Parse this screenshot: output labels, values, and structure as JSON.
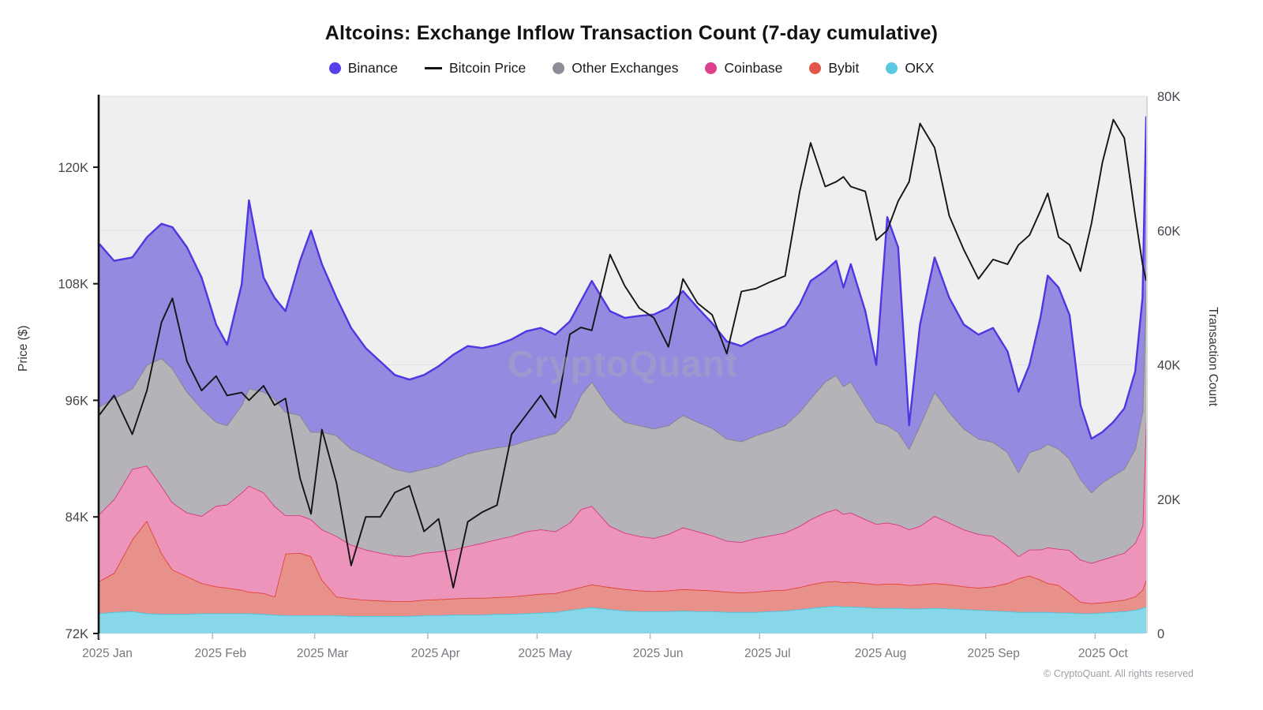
{
  "header": {
    "title": "Altcoins: Exchange Inflow Transaction Count (7-day cumulative)",
    "watermark": "CryptoQuant",
    "copyright": "© CryptoQuant. All rights reserved"
  },
  "legend": [
    {
      "id": "binance",
      "label": "Binance",
      "marker": "dot",
      "color": "#5640ea"
    },
    {
      "id": "bitcoin-price",
      "label": "Bitcoin Price",
      "marker": "line",
      "color": "#141414"
    },
    {
      "id": "other-exchanges",
      "label": "Other Exchanges",
      "marker": "dot",
      "color": "#8e8c96"
    },
    {
      "id": "coinbase",
      "label": "Coinbase",
      "marker": "dot",
      "color": "#dd3f8d"
    },
    {
      "id": "bybit",
      "label": "Bybit",
      "marker": "dot",
      "color": "#e25549"
    },
    {
      "id": "okx",
      "label": "OKX",
      "marker": "dot",
      "color": "#5bc8e3"
    }
  ],
  "colors": {
    "plot_bg": "#f0eff0",
    "grid": "#e4e4e7",
    "axis_spine": "#111111",
    "right_spine": "#d8d8db",
    "tick_text": "#42464b",
    "month_text": "#75797e",
    "month_tick": "#b9b9bd",
    "btc_line": "#141414"
  },
  "chart_data": {
    "type": "area",
    "subtype": "stacked-area-with-line",
    "title": "Altcoins: Exchange Inflow Transaction Count (7-day cumulative)",
    "y_left": {
      "label": "Price ($)",
      "ticks": [
        "120K",
        "108K",
        "96K",
        "84K",
        "72K"
      ],
      "tick_values": [
        120,
        108,
        96,
        84,
        72
      ],
      "min": 72,
      "max": 127.3,
      "unit": "K USD"
    },
    "y_right": {
      "label": "Transaction Count",
      "ticks": [
        "80K",
        "60K",
        "40K",
        "20K",
        "0"
      ],
      "tick_values": [
        80,
        60,
        40,
        20,
        0
      ],
      "min": 0,
      "max": 80,
      "unit": "K transactions"
    },
    "x_axis": {
      "months": [
        "2025 Jan",
        "2025 Feb",
        "2025 Mar",
        "2025 Apr",
        "2025 May",
        "2025 Jun",
        "2025 Jul",
        "2025 Aug",
        "2025 Sep",
        "2025 Oct"
      ],
      "month_start_days": [
        0,
        31,
        59,
        90,
        120,
        151,
        181,
        212,
        243,
        273
      ],
      "total_days": 287,
      "grid": "horizontal-faint",
      "legend_position": "top"
    },
    "stack_order_bottom_to_top": [
      "okx",
      "bybit",
      "coinbase",
      "other_exchanges",
      "binance"
    ],
    "series_style": {
      "okx": {
        "fill": "#87d7e9",
        "stroke": "#4cc3de"
      },
      "bybit": {
        "fill": "#e7918a",
        "stroke": "#df4338"
      },
      "coinbase": {
        "fill": "#ed94bb",
        "stroke": "#d63880"
      },
      "other_exchanges": {
        "fill": "#b5b3b8",
        "stroke": "#84828c"
      },
      "binance": {
        "fill": "#948adf",
        "stroke": "#4d37e2"
      }
    },
    "columns": [
      "day",
      "okx_k",
      "bybit_k",
      "coinbase_k",
      "other_exchanges_k",
      "binance_k",
      "btc_price_kusd"
    ],
    "points": [
      [
        0,
        3.0,
        4.8,
        10.0,
        16.0,
        24.2,
        94.5
      ],
      [
        4,
        3.2,
        5.8,
        11.0,
        15.0,
        20.5,
        96.5
      ],
      [
        9,
        3.3,
        10.7,
        10.5,
        12.0,
        19.5,
        92.5
      ],
      [
        13,
        3.0,
        13.8,
        8.2,
        15.0,
        19.0,
        97.0
      ],
      [
        17,
        2.9,
        9.1,
        10.0,
        19.0,
        20.0,
        104.0
      ],
      [
        20,
        2.9,
        6.6,
        10.0,
        20.0,
        21.0,
        106.5
      ],
      [
        24,
        2.9,
        5.6,
        9.5,
        18.0,
        21.5,
        100.0
      ],
      [
        28,
        3.0,
        4.5,
        10.0,
        16.0,
        19.5,
        97.0
      ],
      [
        32,
        3.0,
        4.0,
        12.0,
        12.5,
        14.5,
        98.5
      ],
      [
        35,
        3.0,
        3.8,
        12.4,
        11.8,
        12.0,
        96.5
      ],
      [
        39,
        3.0,
        3.5,
        14.5,
        13.0,
        18.0,
        96.8
      ],
      [
        41,
        3.0,
        3.2,
        15.8,
        14.5,
        28.0,
        96.0
      ],
      [
        45,
        2.9,
        3.1,
        15.0,
        15.0,
        17.0,
        97.5
      ],
      [
        48,
        2.8,
        2.7,
        13.5,
        16.0,
        15.0,
        95.5
      ],
      [
        51,
        2.7,
        9.2,
        5.7,
        15.4,
        15.0,
        96.2
      ],
      [
        55,
        2.7,
        9.3,
        5.6,
        14.9,
        23.0,
        88.0
      ],
      [
        58,
        2.7,
        8.8,
        5.5,
        13.0,
        30.0,
        84.3
      ],
      [
        61,
        2.7,
        5.3,
        7.5,
        14.5,
        25.0,
        93.0
      ],
      [
        65,
        2.7,
        2.8,
        9.0,
        15.0,
        20.5,
        87.5
      ],
      [
        69,
        2.6,
        2.6,
        8.0,
        14.3,
        18.0,
        79.0
      ],
      [
        73,
        2.6,
        2.4,
        7.5,
        14.0,
        16.0,
        84.0
      ],
      [
        77,
        2.6,
        2.3,
        7.1,
        13.5,
        15.0,
        84.0
      ],
      [
        81,
        2.6,
        2.2,
        6.8,
        12.9,
        14.0,
        86.5
      ],
      [
        85,
        2.6,
        2.2,
        6.7,
        12.5,
        13.8,
        87.2
      ],
      [
        89,
        2.7,
        2.3,
        7.0,
        12.5,
        14.0,
        82.5
      ],
      [
        93,
        2.7,
        2.4,
        7.1,
        12.8,
        14.8,
        83.8
      ],
      [
        97,
        2.8,
        2.4,
        7.3,
        13.5,
        15.5,
        76.7
      ],
      [
        101,
        2.8,
        2.5,
        7.7,
        13.8,
        16.0,
        83.5
      ],
      [
        105,
        2.8,
        2.5,
        8.2,
        13.8,
        15.2,
        84.5
      ],
      [
        109,
        2.9,
        2.5,
        8.6,
        13.7,
        15.3,
        85.2
      ],
      [
        113,
        2.9,
        2.6,
        9.0,
        13.5,
        15.8,
        92.5
      ],
      [
        117,
        3.0,
        2.7,
        9.5,
        13.5,
        16.3,
        94.5
      ],
      [
        121,
        3.1,
        2.8,
        9.6,
        13.8,
        16.2,
        96.5
      ],
      [
        125,
        3.2,
        2.8,
        9.2,
        14.6,
        14.7,
        94.2
      ],
      [
        129,
        3.5,
        3.0,
        10.0,
        15.5,
        14.5,
        102.8
      ],
      [
        132,
        3.7,
        3.2,
        11.6,
        17.0,
        14.0,
        103.5
      ],
      [
        135,
        3.9,
        3.4,
        11.7,
        18.5,
        15.0,
        103.2
      ],
      [
        140,
        3.6,
        3.3,
        9.1,
        17.5,
        14.5,
        111.0
      ],
      [
        144,
        3.4,
        3.2,
        8.4,
        16.5,
        15.5,
        107.8
      ],
      [
        148,
        3.3,
        3.1,
        8.1,
        16.5,
        16.3,
        105.5
      ],
      [
        152,
        3.3,
        3.0,
        7.9,
        16.3,
        17.0,
        104.5
      ],
      [
        156,
        3.3,
        3.1,
        8.4,
        16.2,
        17.5,
        101.5
      ],
      [
        160,
        3.4,
        3.2,
        9.2,
        16.7,
        18.5,
        108.5
      ],
      [
        164,
        3.3,
        3.2,
        8.7,
        16.3,
        17.0,
        106.0
      ],
      [
        168,
        3.3,
        3.1,
        8.2,
        16.0,
        15.6,
        104.8
      ],
      [
        172,
        3.2,
        3.0,
        7.6,
        15.2,
        14.5,
        100.8
      ],
      [
        176,
        3.2,
        2.9,
        7.5,
        15.0,
        14.2,
        107.2
      ],
      [
        180,
        3.2,
        3.0,
        8.0,
        15.3,
        14.5,
        107.5
      ],
      [
        184,
        3.3,
        3.1,
        8.2,
        15.6,
        14.6,
        108.2
      ],
      [
        188,
        3.4,
        3.1,
        8.5,
        16.0,
        14.8,
        108.8
      ],
      [
        192,
        3.6,
        3.3,
        9.1,
        17.0,
        16.0,
        117.5
      ],
      [
        195,
        3.8,
        3.5,
        9.7,
        18.0,
        17.5,
        122.5
      ],
      [
        199,
        4.0,
        3.7,
        10.3,
        19.5,
        16.5,
        118.0
      ],
      [
        202,
        4.1,
        3.7,
        10.7,
        20.0,
        17.0,
        118.5
      ],
      [
        204,
        4.0,
        3.6,
        10.2,
        19.0,
        14.7,
        119.0
      ],
      [
        206,
        4.0,
        3.7,
        10.3,
        19.5,
        17.5,
        118.0
      ],
      [
        210,
        3.9,
        3.6,
        9.5,
        17.0,
        14.0,
        117.5
      ],
      [
        213,
        3.8,
        3.5,
        9.0,
        15.2,
        8.5,
        112.5
      ],
      [
        216,
        3.8,
        3.6,
        9.1,
        14.5,
        31.0,
        113.5
      ],
      [
        219,
        3.8,
        3.6,
        8.8,
        13.8,
        27.5,
        116.5
      ],
      [
        222,
        3.7,
        3.5,
        8.3,
        12.0,
        3.5,
        118.5
      ],
      [
        225,
        3.7,
        3.6,
        8.7,
        15.0,
        15.0,
        124.5
      ],
      [
        229,
        3.8,
        3.7,
        10.0,
        18.5,
        20.0,
        122.0
      ],
      [
        233,
        3.7,
        3.6,
        9.2,
        16.5,
        17.0,
        115.0
      ],
      [
        237,
        3.6,
        3.4,
        8.5,
        15.0,
        15.5,
        111.5
      ],
      [
        241,
        3.5,
        3.3,
        8.0,
        14.2,
        15.5,
        108.5
      ],
      [
        245,
        3.4,
        3.6,
        7.5,
        14.0,
        17.0,
        110.5
      ],
      [
        249,
        3.3,
        4.2,
        5.5,
        14.0,
        15.0,
        110.0
      ],
      [
        252,
        3.2,
        5.0,
        3.3,
        12.5,
        12.0,
        112.0
      ],
      [
        255,
        3.2,
        5.4,
        3.9,
        14.5,
        13.0,
        113.0
      ],
      [
        258,
        3.2,
        4.8,
        4.5,
        15.0,
        19.5,
        115.5
      ],
      [
        260,
        3.2,
        4.3,
        5.3,
        15.4,
        25.1,
        117.3
      ],
      [
        263,
        3.1,
        4.1,
        5.4,
        14.9,
        24.0,
        112.8
      ],
      [
        266,
        3.1,
        2.9,
        6.4,
        13.6,
        21.4,
        112.0
      ],
      [
        269,
        3.0,
        1.7,
        6.3,
        12.0,
        11.0,
        109.3
      ],
      [
        272,
        3.0,
        1.5,
        6.0,
        10.5,
        8.0,
        114.2
      ],
      [
        275,
        3.1,
        1.5,
        6.4,
        11.5,
        7.5,
        120.5
      ],
      [
        278,
        3.2,
        1.6,
        6.7,
        12.0,
        8.0,
        124.9
      ],
      [
        281,
        3.3,
        1.7,
        7.0,
        12.5,
        9.0,
        123.0
      ],
      [
        284,
        3.5,
        2.0,
        8.0,
        14.0,
        11.5,
        115.0
      ],
      [
        286,
        3.8,
        2.7,
        9.5,
        17.0,
        17.0,
        110.0
      ],
      [
        287,
        4.0,
        4.0,
        24.0,
        20.0,
        25.0,
        108.3
      ]
    ]
  }
}
